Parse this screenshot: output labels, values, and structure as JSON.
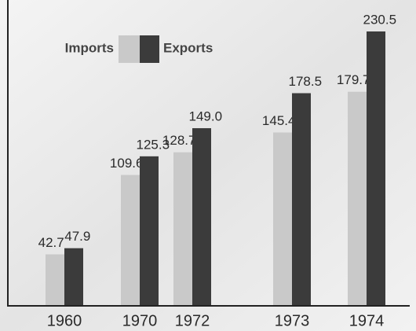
{
  "chart_data": {
    "type": "bar",
    "categories": [
      "1960",
      "1970",
      "1972",
      "1973",
      "1974"
    ],
    "series": [
      {
        "name": "Imports",
        "color": "#c9c9c9",
        "values": [
          42.7,
          109.6,
          128.7,
          145.4,
          179.7
        ],
        "value_labels": [
          "42.7",
          "109.6",
          "128.7",
          "145.4",
          "179.7"
        ]
      },
      {
        "name": "Exports",
        "color": "#3b3b3b",
        "values": [
          47.9,
          125.3,
          149.0,
          178.5,
          230.5
        ],
        "value_labels": [
          "47.9",
          "125.3",
          "149.0",
          "178.5",
          "230.5"
        ]
      }
    ]
  }
}
